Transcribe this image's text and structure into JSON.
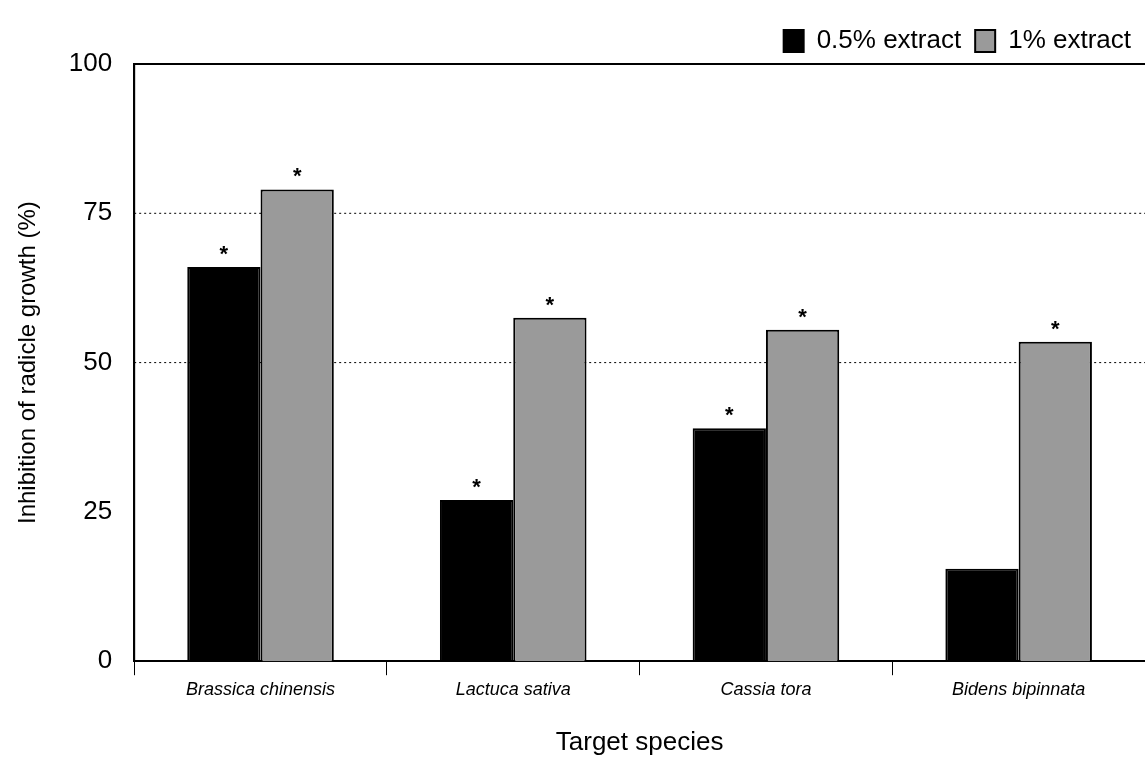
{
  "chart_data": {
    "type": "bar",
    "xlabel": "Target species",
    "ylabel": "Inhibition of radicle growth (%)",
    "categories": [
      "Brassica chinensis",
      "Lactuca sativa",
      "Cassia tora",
      "Bidens bipinnata"
    ],
    "series": [
      {
        "name": "0.5% extract",
        "color": "#000000",
        "values": [
          66,
          27,
          39,
          15.5
        ],
        "value_labels": [
          "*",
          "*",
          "*",
          null
        ]
      },
      {
        "name": "1% extract",
        "color": "#9a9a9a",
        "values": [
          79,
          57.5,
          55.5,
          53.5
        ],
        "value_labels": [
          "*",
          "*",
          "*",
          "*"
        ]
      }
    ],
    "ylim": [
      0,
      100
    ],
    "yticks": [
      0,
      25,
      50,
      75,
      100
    ],
    "grid": false,
    "legend": "top right",
    "ref_lines": [
      {
        "axis": "y",
        "value": 50,
        "line_style": "dotted",
        "color": "#000000"
      },
      {
        "axis": "y",
        "value": 75,
        "line_style": "dotted",
        "color": "#000000"
      }
    ]
  }
}
